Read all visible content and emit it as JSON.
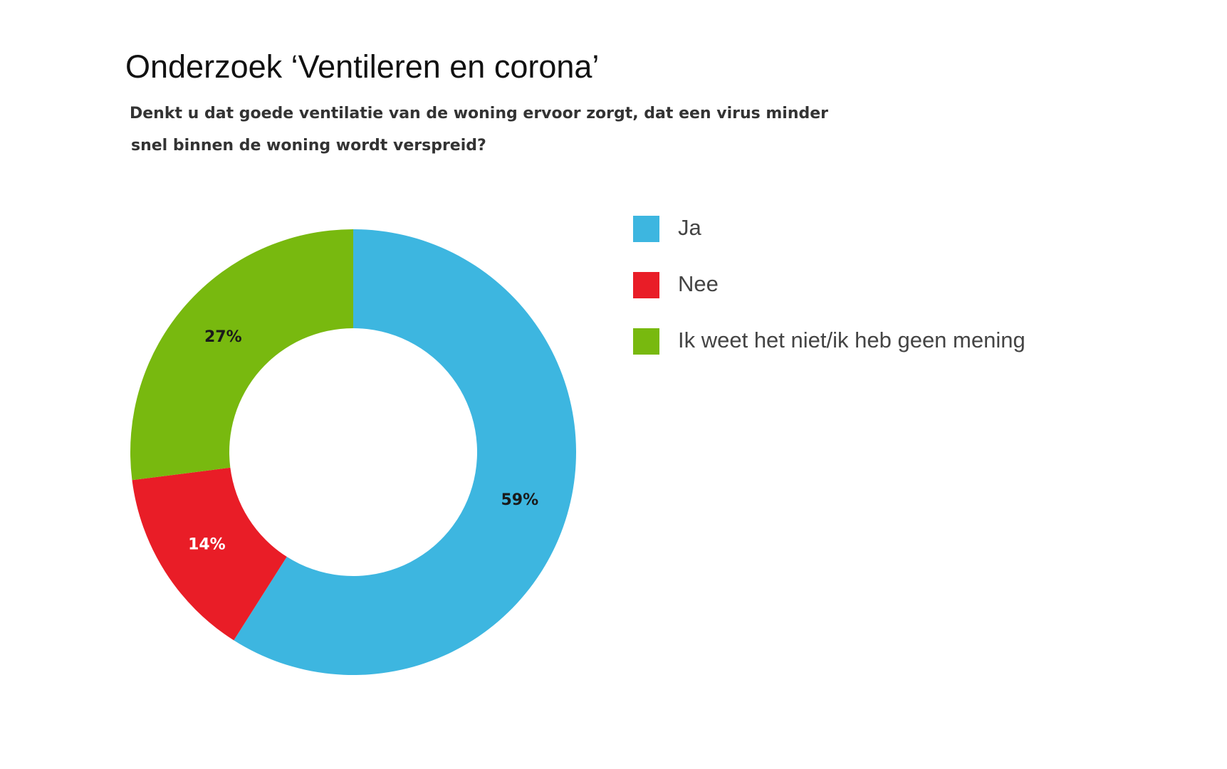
{
  "chart_data": {
    "type": "donut",
    "title": "Onderzoek ‘Ventileren en corona’",
    "subtitle": [
      "Denkt u dat goede ventilatie van de woning ervoor zorgt, dat een virus minder",
      "snel binnen de woning wordt verspreid?"
    ],
    "categories": [
      "Ja",
      "Nee",
      "Ik weet het niet/ik heb geen mening"
    ],
    "values": [
      59,
      14,
      27
    ],
    "value_labels": [
      "59%",
      "14%",
      "27%"
    ],
    "colors": [
      "#3db6e0",
      "#e91d27",
      "#78b90f"
    ],
    "label_colors": [
      "#1a1a1a",
      "#ffffff",
      "#1a1a1a"
    ],
    "legend": "right"
  }
}
